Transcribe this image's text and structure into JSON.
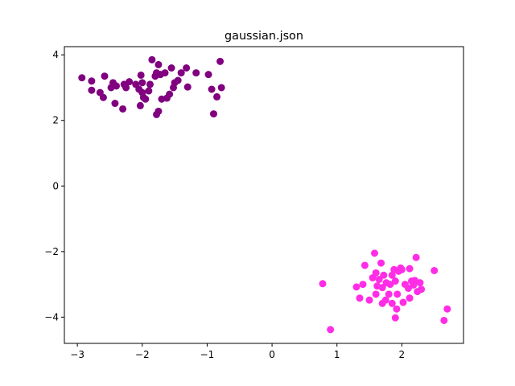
{
  "chart_data": {
    "type": "scatter",
    "title": "gaussian.json",
    "xlabel": "",
    "ylabel": "",
    "xlim": [
      -3.2,
      2.95
    ],
    "ylim": [
      -4.8,
      4.25
    ],
    "xticks": [
      -3,
      -2,
      -1,
      0,
      1,
      2
    ],
    "yticks": [
      -4,
      -2,
      0,
      2,
      4
    ],
    "grid": false,
    "legend": "none",
    "series": [
      {
        "color": "#800080",
        "points": [
          [
            -2.93,
            3.3
          ],
          [
            -2.78,
            3.2
          ],
          [
            -2.78,
            2.92
          ],
          [
            -2.65,
            2.85
          ],
          [
            -2.6,
            2.7
          ],
          [
            -2.58,
            3.35
          ],
          [
            -2.48,
            3.0
          ],
          [
            -2.45,
            3.15
          ],
          [
            -2.42,
            2.52
          ],
          [
            -2.4,
            3.05
          ],
          [
            -2.3,
            2.35
          ],
          [
            -2.28,
            3.1
          ],
          [
            -2.25,
            3.0
          ],
          [
            -2.2,
            3.18
          ],
          [
            -2.1,
            3.1
          ],
          [
            -2.05,
            2.95
          ],
          [
            -2.03,
            2.45
          ],
          [
            -2.02,
            3.38
          ],
          [
            -2.0,
            3.15
          ],
          [
            -2.0,
            2.85
          ],
          [
            -1.98,
            2.7
          ],
          [
            -1.95,
            2.65
          ],
          [
            -1.9,
            2.9
          ],
          [
            -1.88,
            3.1
          ],
          [
            -1.85,
            3.85
          ],
          [
            -1.8,
            3.35
          ],
          [
            -1.78,
            3.45
          ],
          [
            -1.78,
            2.18
          ],
          [
            -1.75,
            3.7
          ],
          [
            -1.75,
            2.28
          ],
          [
            -1.72,
            3.4
          ],
          [
            -1.7,
            2.65
          ],
          [
            -1.65,
            3.45
          ],
          [
            -1.62,
            2.68
          ],
          [
            -1.58,
            2.8
          ],
          [
            -1.55,
            3.6
          ],
          [
            -1.52,
            3.0
          ],
          [
            -1.5,
            3.15
          ],
          [
            -1.45,
            3.22
          ],
          [
            -1.4,
            3.45
          ],
          [
            -1.32,
            3.6
          ],
          [
            -1.3,
            3.02
          ],
          [
            -1.17,
            3.45
          ],
          [
            -0.98,
            3.4
          ],
          [
            -0.93,
            2.95
          ],
          [
            -0.9,
            2.2
          ],
          [
            -0.85,
            2.72
          ],
          [
            -0.8,
            3.8
          ],
          [
            -0.78,
            3.0
          ]
        ]
      },
      {
        "color": "#ff2de6",
        "points": [
          [
            0.78,
            -2.98
          ],
          [
            0.9,
            -4.38
          ],
          [
            1.3,
            -3.08
          ],
          [
            1.35,
            -3.42
          ],
          [
            1.4,
            -3.0
          ],
          [
            1.43,
            -2.42
          ],
          [
            1.5,
            -3.48
          ],
          [
            1.55,
            -2.8
          ],
          [
            1.58,
            -2.05
          ],
          [
            1.6,
            -3.3
          ],
          [
            1.6,
            -2.65
          ],
          [
            1.62,
            -3.05
          ],
          [
            1.65,
            -2.85
          ],
          [
            1.68,
            -2.35
          ],
          [
            1.7,
            -3.1
          ],
          [
            1.7,
            -3.58
          ],
          [
            1.72,
            -2.72
          ],
          [
            1.75,
            -3.48
          ],
          [
            1.76,
            -2.95
          ],
          [
            1.8,
            -3.3
          ],
          [
            1.82,
            -3.0
          ],
          [
            1.85,
            -2.72
          ],
          [
            1.85,
            -3.58
          ],
          [
            1.88,
            -2.55
          ],
          [
            1.9,
            -2.9
          ],
          [
            1.9,
            -4.02
          ],
          [
            1.92,
            -3.75
          ],
          [
            1.93,
            -3.3
          ],
          [
            1.95,
            -2.6
          ],
          [
            1.98,
            -2.5
          ],
          [
            2.0,
            -2.55
          ],
          [
            2.02,
            -3.55
          ],
          [
            2.05,
            -3.0
          ],
          [
            2.1,
            -3.12
          ],
          [
            2.12,
            -2.52
          ],
          [
            2.12,
            -3.42
          ],
          [
            2.15,
            -2.9
          ],
          [
            2.18,
            -3.02
          ],
          [
            2.2,
            -2.88
          ],
          [
            2.22,
            -2.18
          ],
          [
            2.24,
            -3.22
          ],
          [
            2.28,
            -2.95
          ],
          [
            2.3,
            -3.15
          ],
          [
            2.5,
            -2.58
          ],
          [
            2.65,
            -4.1
          ],
          [
            2.7,
            -3.75
          ]
        ]
      }
    ]
  }
}
